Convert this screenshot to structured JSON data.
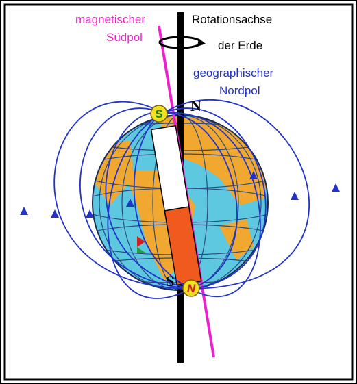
{
  "labels": {
    "magnetic_pole": [
      "magnetischer",
      "Südpol"
    ],
    "rotation_axis": [
      "Rotationsachse",
      "der Erde"
    ],
    "geographic_pole": [
      "geographischer",
      "Nordpol"
    ]
  },
  "poles": {
    "geo_north": "N",
    "geo_south": "S",
    "magnet_south": "S",
    "magnet_north": "N"
  }
}
